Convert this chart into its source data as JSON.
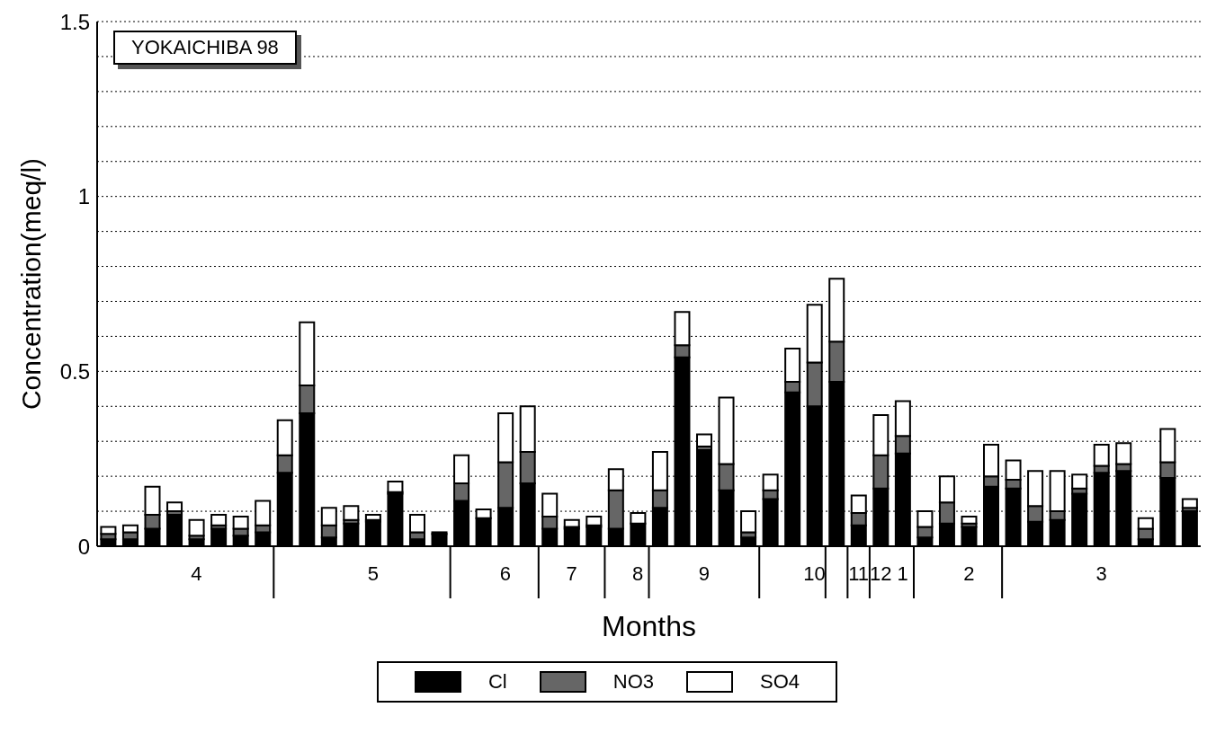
{
  "chart_data": {
    "type": "bar",
    "title": "YOKAICHIBA 98",
    "xlabel": "Months",
    "ylabel": "Concentration(meq/l)",
    "categories": [
      null,
      null,
      null,
      null,
      "4",
      null,
      null,
      null,
      null,
      null,
      null,
      null,
      "5",
      null,
      null,
      null,
      null,
      null,
      "6",
      null,
      null,
      "7",
      null,
      null,
      "8",
      null,
      null,
      "9",
      null,
      null,
      null,
      null,
      "10",
      null,
      "11",
      "12",
      "1",
      null,
      null,
      "2",
      null,
      null,
      null,
      null,
      null,
      "3",
      null,
      null,
      null,
      null
    ],
    "series": [
      {
        "name": "Cl",
        "color": "#000000",
        "values": [
          0.02,
          0.02,
          0.05,
          0.09,
          0.02,
          0.05,
          0.03,
          0.04,
          0.21,
          0.38,
          0.025,
          0.065,
          0.07,
          0.15,
          0.02,
          0.035,
          0.13,
          0.08,
          0.11,
          0.18,
          0.05,
          0.05,
          0.055,
          0.05,
          0.065,
          0.11,
          0.54,
          0.275,
          0.16,
          0.025,
          0.135,
          0.44,
          0.4,
          0.47,
          0.06,
          0.165,
          0.265,
          0.025,
          0.065,
          0.055,
          0.17,
          0.165,
          0.07,
          0.075,
          0.15,
          0.21,
          0.215,
          0.02,
          0.195,
          0.1
        ]
      },
      {
        "name": "NO3",
        "color": "#666666",
        "values": [
          0.015,
          0.02,
          0.04,
          0.01,
          0.01,
          0.01,
          0.02,
          0.02,
          0.05,
          0.08,
          0.035,
          0.01,
          0.005,
          0.005,
          0.02,
          0,
          0.05,
          0,
          0.13,
          0.09,
          0.035,
          0.005,
          0.005,
          0.11,
          0,
          0.05,
          0.035,
          0.01,
          0.075,
          0.015,
          0.025,
          0.03,
          0.125,
          0.115,
          0.035,
          0.095,
          0.05,
          0.03,
          0.06,
          0.01,
          0.03,
          0.025,
          0.045,
          0.025,
          0.015,
          0.02,
          0.02,
          0.03,
          0.045,
          0.01
        ]
      },
      {
        "name": "SO4",
        "color": "#ffffff",
        "values": [
          0.02,
          0.02,
          0.08,
          0.025,
          0.045,
          0.03,
          0.035,
          0.07,
          0.1,
          0.18,
          0.05,
          0.04,
          0.015,
          0.03,
          0.05,
          0.005,
          0.08,
          0.025,
          0.14,
          0.13,
          0.065,
          0.02,
          0.025,
          0.06,
          0.03,
          0.11,
          0.095,
          0.035,
          0.19,
          0.06,
          0.045,
          0.095,
          0.165,
          0.18,
          0.05,
          0.115,
          0.1,
          0.045,
          0.075,
          0.02,
          0.09,
          0.055,
          0.1,
          0.115,
          0.04,
          0.06,
          0.06,
          0.03,
          0.095,
          0.025
        ]
      }
    ],
    "stacked": true,
    "ylim": [
      0,
      1.5
    ],
    "yticks": [
      0,
      {
        "value": 0.1,
        "label": null
      },
      {
        "value": 0.2,
        "label": null
      },
      {
        "value": 0.3,
        "label": null
      },
      {
        "value": 0.4,
        "label": null
      },
      0.5,
      {
        "value": 0.6,
        "label": null
      },
      {
        "value": 0.7,
        "label": null
      },
      {
        "value": 0.8,
        "label": null
      },
      {
        "value": 0.9,
        "label": null
      },
      1,
      {
        "value": 1.1,
        "label": null
      },
      {
        "value": 1.2,
        "label": null
      },
      {
        "value": 1.3,
        "label": null
      },
      {
        "value": 1.4,
        "label": null
      },
      1.5
    ],
    "grid": "y",
    "legend": "bottom"
  }
}
